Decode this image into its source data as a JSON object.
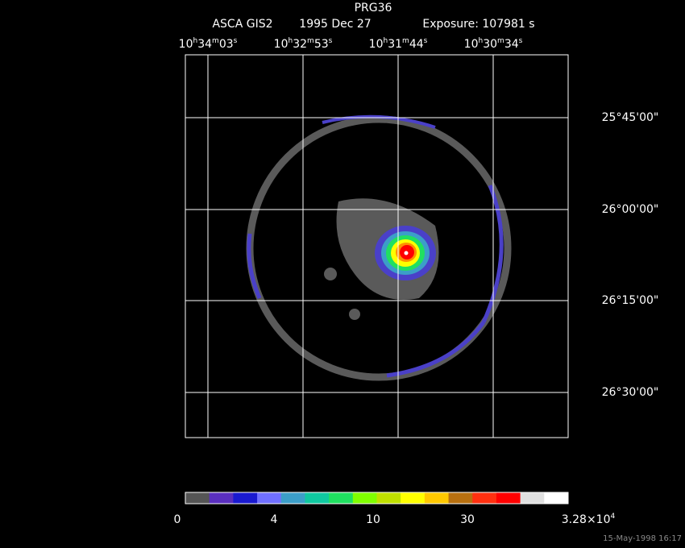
{
  "title": "PRG36",
  "subtitle": [
    "ASCA GIS2",
    "1995 Dec 27",
    "Exposure: 107981 s"
  ],
  "ra_labels": [
    [
      "10",
      "h",
      "34",
      "m",
      "03",
      "s"
    ],
    [
      "10",
      "h",
      "32",
      "m",
      "53",
      "s"
    ],
    [
      "10",
      "h",
      "31",
      "m",
      "44",
      "s"
    ],
    [
      "10",
      "h",
      "30",
      "m",
      "34",
      "s"
    ]
  ],
  "dec_labels": [
    "25°45'00\"",
    "26°00'00\"",
    "26°15'00\"",
    "26°30'00\""
  ],
  "colorbar": {
    "colors": [
      "#555555",
      "#5a2fbf",
      "#1a1ad0",
      "#7070ff",
      "#3c9ec8",
      "#10c8a0",
      "#20e060",
      "#80ff00",
      "#c0e000",
      "#ffff00",
      "#ffc800",
      "#b87010",
      "#ff3010",
      "#ff0000",
      "#e0e0e0",
      "#ffffff"
    ],
    "labels": [
      [
        "0"
      ],
      [
        "4"
      ],
      [
        "10"
      ],
      [
        "30"
      ],
      [
        "3.28×10",
        "4"
      ]
    ]
  },
  "timestamp": "15-May-1998 16:17"
}
